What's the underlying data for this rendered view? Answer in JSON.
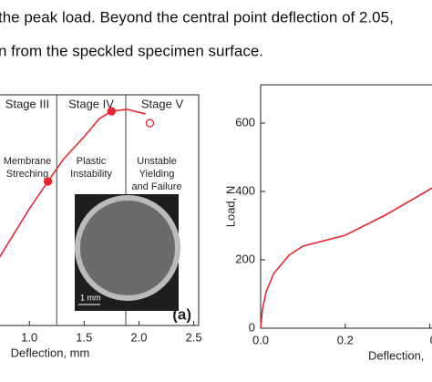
{
  "text_lines": [
    "the peak load. Beyond the central point deflection of 2.05,",
    "n from the speckled specimen surface."
  ],
  "chart_data": [
    {
      "type": "line",
      "x_label": "Deflection, mm",
      "xlim": [
        0.724,
        2.545
      ],
      "ylim": [
        0,
        700
      ],
      "xticks": [
        {
          "value": 1,
          "label": "1.0"
        },
        1.5,
        {
          "value": 2,
          "label": "2.0"
        },
        2.5
      ],
      "series": [
        {
          "color": "#e8262e",
          "x": [
            0.724,
            1.0,
            1.17,
            1.31,
            1.5,
            1.64,
            1.75,
            1.89,
            2.06
          ],
          "values": [
            205,
            354,
            437,
            504,
            573,
            628,
            650,
            656,
            642
          ]
        },
        {
          "color": "#e8262e",
          "style": "marker",
          "x": [
            1.17,
            1.75,
            2.1
          ],
          "values": [
            437,
            650,
            614
          ],
          "filled": [
            true,
            true,
            false
          ]
        }
      ],
      "stage_boundaries": [
        1.25,
        1.88
      ],
      "stages": [
        {
          "label": "Stage III",
          "note": [
            "Membrane",
            "Streching"
          ]
        },
        {
          "label": "Stage IV",
          "note": [
            "Plastic",
            "Instability"
          ]
        },
        {
          "label": "Stage V",
          "note": [
            "Unstable",
            "Yielding",
            "and Failure"
          ]
        }
      ],
      "panel_label": "(a)",
      "scale_label": "1 mm"
    },
    {
      "type": "line",
      "x_label": "Deflection,",
      "y_label": "Load, N",
      "xlim": [
        0,
        0.418
      ],
      "ylim": [
        0,
        712
      ],
      "xticks": [
        {
          "value": 0,
          "label": "0.0"
        },
        0.2,
        {
          "value": 0.4,
          "label": "0"
        }
      ],
      "yticks": [
        0,
        200,
        400,
        600
      ],
      "series": [
        {
          "color": "#e8262e",
          "x": [
            0,
            0.004,
            0.013,
            0.031,
            0.049,
            0.067,
            0.1,
            0.2,
            0.298,
            0.418
          ],
          "values": [
            0,
            53,
            107,
            160,
            187,
            213,
            240,
            272,
            333,
            419
          ]
        }
      ]
    }
  ]
}
